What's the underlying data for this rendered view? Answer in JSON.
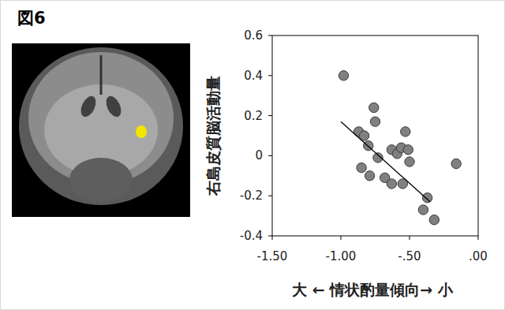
{
  "chart_data": {
    "type": "scatter",
    "title": "図6",
    "x_label": "大 ← 情状酌量傾向→ 小",
    "y_label": "右島皮質脳活動量",
    "xlim": [
      -1.5,
      0
    ],
    "ylim": [
      -0.4,
      0.6
    ],
    "xticks": [
      {
        "value": -1.5,
        "label": "-1.50"
      },
      {
        "value": -1.0,
        "label": "-1.00"
      },
      {
        "value": -0.5,
        "label": "-.50"
      },
      {
        "value": 0,
        "label": ".00"
      }
    ],
    "yticks": [
      -0.4,
      -0.2,
      0,
      0.2,
      0.4,
      0.6
    ],
    "grid": false,
    "series": [
      {
        "type": "scatter",
        "color": "#808080",
        "marker": "circle",
        "x": [
          -0.98,
          -0.87,
          -0.83,
          -0.76,
          -0.75,
          -0.8,
          -0.85,
          -0.79,
          -0.73,
          -0.68,
          -0.63,
          -0.63,
          -0.59,
          -0.56,
          -0.55,
          -0.53,
          -0.51,
          -0.5,
          -0.37,
          -0.4,
          -0.32,
          -0.16
        ],
        "values": [
          0.4,
          0.12,
          0.1,
          0.24,
          0.17,
          0.05,
          -0.06,
          -0.1,
          -0.01,
          -0.11,
          -0.14,
          0.03,
          0.01,
          0.04,
          -0.14,
          0.12,
          0.03,
          -0.03,
          -0.21,
          -0.27,
          -0.32,
          -0.04
        ]
      },
      {
        "type": "line",
        "color": "#000000",
        "line_style": "solid",
        "x": [
          -1.0,
          -0.35
        ],
        "values": [
          0.17,
          -0.23
        ]
      }
    ]
  }
}
